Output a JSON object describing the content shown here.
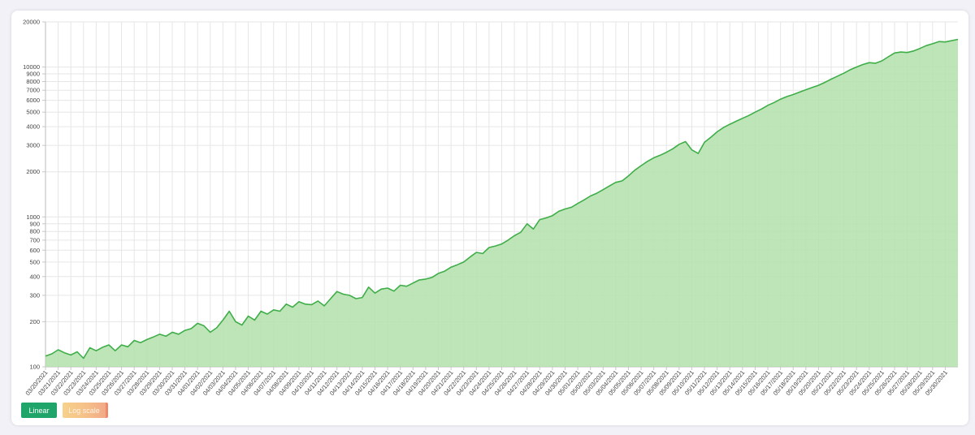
{
  "buttons": {
    "linear": "Linear",
    "log": "Log scale"
  },
  "colors": {
    "line": "#3fae49",
    "fill": "#b3e0ab",
    "grid": "#e6e6e6",
    "active_button": "#1fa56a"
  },
  "chart_data": {
    "type": "area",
    "title": "",
    "xlabel": "",
    "ylabel": "",
    "y_scale": "log",
    "ylim": [
      100,
      20000
    ],
    "grid": true,
    "y_ticks": [
      100,
      200,
      300,
      400,
      500,
      600,
      700,
      800,
      900,
      1000,
      2000,
      3000,
      4000,
      5000,
      6000,
      7000,
      8000,
      9000,
      10000,
      20000
    ],
    "x_ticks": [
      "03/20/2021",
      "03/21/2021",
      "03/22/2021",
      "03/23/2021",
      "03/24/2021",
      "03/25/2021",
      "03/26/2021",
      "03/27/2021",
      "03/28/2021",
      "03/29/2021",
      "03/30/2021",
      "03/31/2021",
      "04/01/2021",
      "04/02/2021",
      "04/03/2021",
      "04/04/2021",
      "04/05/2021",
      "04/06/2021",
      "04/07/2021",
      "04/08/2021",
      "04/09/2021",
      "04/10/2021",
      "04/11/2021",
      "04/12/2021",
      "04/13/2021",
      "04/14/2021",
      "04/15/2021",
      "04/16/2021",
      "04/17/2021",
      "04/18/2021",
      "04/19/2021",
      "04/20/2021",
      "04/21/2021",
      "04/22/2021",
      "04/23/2021",
      "04/24/2021",
      "04/25/2021",
      "04/26/2021",
      "04/27/2021",
      "04/28/2021",
      "04/29/2021",
      "04/30/2021",
      "05/01/2021",
      "05/02/2021",
      "05/03/2021",
      "05/04/2021",
      "05/05/2021",
      "05/06/2021",
      "05/07/2021",
      "05/08/2021",
      "05/09/2021",
      "05/10/2021",
      "05/11/2021",
      "05/12/2021",
      "05/13/2021",
      "05/14/2021",
      "05/15/2021",
      "05/16/2021",
      "05/17/2021",
      "05/18/2021",
      "05/19/2021",
      "05/20/2021",
      "05/21/2021",
      "05/22/2021",
      "05/23/2021",
      "05/24/2021",
      "05/25/2021",
      "05/26/2021",
      "05/27/2021",
      "05/28/2021",
      "05/29/2021",
      "05/30/2021"
    ],
    "x_domain": [
      "03/20/2021",
      "05/31/2021"
    ],
    "series": [
      {
        "values": [
          [
            "03/20/2021",
            118
          ],
          [
            "03/20/2021 12:00",
            122
          ],
          [
            "03/21/2021",
            130
          ],
          [
            "03/21/2021 12:00",
            124
          ],
          [
            "03/22/2021",
            120
          ],
          [
            "03/22/2021 12:00",
            126
          ],
          [
            "03/23/2021",
            114
          ],
          [
            "03/23/2021 12:00",
            134
          ],
          [
            "03/24/2021",
            128
          ],
          [
            "03/24/2021 12:00",
            135
          ],
          [
            "03/25/2021",
            140
          ],
          [
            "03/25/2021 12:00",
            128
          ],
          [
            "03/26/2021",
            140
          ],
          [
            "03/26/2021 12:00",
            136
          ],
          [
            "03/27/2021",
            150
          ],
          [
            "03/27/2021 12:00",
            145
          ],
          [
            "03/28/2021",
            152
          ],
          [
            "03/28/2021 12:00",
            158
          ],
          [
            "03/29/2021",
            165
          ],
          [
            "03/29/2021 12:00",
            160
          ],
          [
            "03/30/2021",
            170
          ],
          [
            "03/30/2021 12:00",
            165
          ],
          [
            "03/31/2021",
            175
          ],
          [
            "03/31/2021 12:00",
            180
          ],
          [
            "04/01/2021",
            195
          ],
          [
            "04/01/2021 12:00",
            188
          ],
          [
            "04/02/2021",
            170
          ],
          [
            "04/02/2021 12:00",
            182
          ],
          [
            "04/03/2021",
            205
          ],
          [
            "04/03/2021 12:00",
            235
          ],
          [
            "04/04/2021",
            200
          ],
          [
            "04/04/2021 12:00",
            190
          ],
          [
            "04/05/2021",
            218
          ],
          [
            "04/05/2021 12:00",
            205
          ],
          [
            "04/06/2021",
            235
          ],
          [
            "04/06/2021 12:00",
            225
          ],
          [
            "04/07/2021",
            240
          ],
          [
            "04/07/2021 12:00",
            235
          ],
          [
            "04/08/2021",
            262
          ],
          [
            "04/08/2021 12:00",
            250
          ],
          [
            "04/09/2021",
            272
          ],
          [
            "04/09/2021 12:00",
            262
          ],
          [
            "04/10/2021",
            260
          ],
          [
            "04/10/2021 12:00",
            275
          ],
          [
            "04/11/2021",
            255
          ],
          [
            "04/11/2021 12:00",
            285
          ],
          [
            "04/12/2021",
            318
          ],
          [
            "04/12/2021 12:00",
            305
          ],
          [
            "04/13/2021",
            300
          ],
          [
            "04/13/2021 12:00",
            285
          ],
          [
            "04/14/2021",
            290
          ],
          [
            "04/14/2021 12:00",
            340
          ],
          [
            "04/15/2021",
            310
          ],
          [
            "04/15/2021 12:00",
            330
          ],
          [
            "04/16/2021",
            335
          ],
          [
            "04/16/2021 12:00",
            320
          ],
          [
            "04/17/2021",
            350
          ],
          [
            "04/17/2021 12:00",
            345
          ],
          [
            "04/18/2021",
            362
          ],
          [
            "04/18/2021 12:00",
            380
          ],
          [
            "04/19/2021",
            385
          ],
          [
            "04/19/2021 12:00",
            395
          ],
          [
            "04/20/2021",
            420
          ],
          [
            "04/20/2021 12:00",
            435
          ],
          [
            "04/21/2021",
            462
          ],
          [
            "04/21/2021 12:00",
            480
          ],
          [
            "04/22/2021",
            500
          ],
          [
            "04/22/2021 12:00",
            540
          ],
          [
            "04/23/2021",
            580
          ],
          [
            "04/23/2021 12:00",
            570
          ],
          [
            "04/24/2021",
            625
          ],
          [
            "04/24/2021 12:00",
            640
          ],
          [
            "04/25/2021",
            660
          ],
          [
            "04/25/2021 12:00",
            700
          ],
          [
            "04/26/2021",
            750
          ],
          [
            "04/26/2021 12:00",
            790
          ],
          [
            "04/27/2021",
            900
          ],
          [
            "04/27/2021 12:00",
            830
          ],
          [
            "04/28/2021",
            960
          ],
          [
            "04/28/2021 12:00",
            985
          ],
          [
            "04/29/2021",
            1020
          ],
          [
            "04/29/2021 12:00",
            1090
          ],
          [
            "04/30/2021",
            1130
          ],
          [
            "04/30/2021 12:00",
            1160
          ],
          [
            "05/01/2021",
            1230
          ],
          [
            "05/01/2021 12:00",
            1300
          ],
          [
            "05/02/2021",
            1380
          ],
          [
            "05/02/2021 12:00",
            1440
          ],
          [
            "05/03/2021",
            1520
          ],
          [
            "05/03/2021 12:00",
            1610
          ],
          [
            "05/04/2021",
            1700
          ],
          [
            "05/04/2021 12:00",
            1740
          ],
          [
            "05/05/2021",
            1880
          ],
          [
            "05/05/2021 12:00",
            2050
          ],
          [
            "05/06/2021",
            2200
          ],
          [
            "05/06/2021 12:00",
            2350
          ],
          [
            "05/07/2021",
            2480
          ],
          [
            "05/07/2021 12:00",
            2580
          ],
          [
            "05/08/2021",
            2700
          ],
          [
            "05/08/2021 12:00",
            2850
          ],
          [
            "05/09/2021",
            3050
          ],
          [
            "05/09/2021 12:00",
            3180
          ],
          [
            "05/10/2021",
            2800
          ],
          [
            "05/10/2021 12:00",
            2650
          ],
          [
            "05/11/2021",
            3150
          ],
          [
            "05/11/2021 12:00",
            3400
          ],
          [
            "05/12/2021",
            3700
          ],
          [
            "05/12/2021 12:00",
            3950
          ],
          [
            "05/13/2021",
            4150
          ],
          [
            "05/13/2021 12:00",
            4350
          ],
          [
            "05/14/2021",
            4550
          ],
          [
            "05/14/2021 12:00",
            4750
          ],
          [
            "05/15/2021",
            5000
          ],
          [
            "05/15/2021 12:00",
            5250
          ],
          [
            "05/16/2021",
            5550
          ],
          [
            "05/16/2021 12:00",
            5800
          ],
          [
            "05/17/2021",
            6100
          ],
          [
            "05/17/2021 12:00",
            6350
          ],
          [
            "05/18/2021",
            6550
          ],
          [
            "05/18/2021 12:00",
            6800
          ],
          [
            "05/19/2021",
            7050
          ],
          [
            "05/19/2021 12:00",
            7300
          ],
          [
            "05/20/2021",
            7550
          ],
          [
            "05/20/2021 12:00",
            7900
          ],
          [
            "05/21/2021",
            8300
          ],
          [
            "05/21/2021 12:00",
            8700
          ],
          [
            "05/22/2021",
            9100
          ],
          [
            "05/22/2021 12:00",
            9600
          ],
          [
            "05/23/2021",
            10000
          ],
          [
            "05/23/2021 12:00",
            10400
          ],
          [
            "05/24/2021",
            10700
          ],
          [
            "05/24/2021 12:00",
            10600
          ],
          [
            "05/25/2021",
            11000
          ],
          [
            "05/25/2021 12:00",
            11700
          ],
          [
            "05/26/2021",
            12400
          ],
          [
            "05/26/2021 12:00",
            12600
          ],
          [
            "05/27/2021",
            12500
          ],
          [
            "05/27/2021 12:00",
            12800
          ],
          [
            "05/28/2021",
            13300
          ],
          [
            "05/28/2021 12:00",
            13900
          ],
          [
            "05/29/2021",
            14300
          ],
          [
            "05/29/2021 12:00",
            14800
          ],
          [
            "05/30/2021",
            14700
          ],
          [
            "05/31/2021",
            15300
          ]
        ]
      }
    ]
  }
}
